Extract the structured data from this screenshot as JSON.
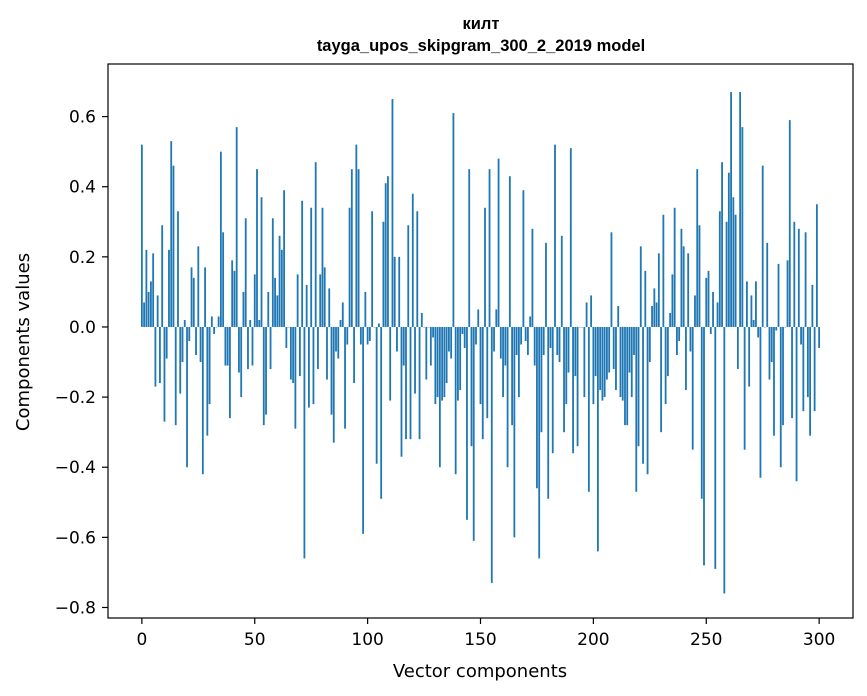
{
  "chart_data": {
    "type": "bar",
    "title_lines": [
      "килт",
      "tayga_upos_skipgram_300_2_2019 model"
    ],
    "xlabel": "Vector components",
    "ylabel": "Components values",
    "xlim": [
      -15,
      315
    ],
    "ylim": [
      -0.83,
      0.75
    ],
    "xticks": [
      0,
      50,
      100,
      150,
      200,
      250,
      300
    ],
    "xtick_labels": [
      "0",
      "50",
      "100",
      "150",
      "200",
      "250",
      "300"
    ],
    "yticks": [
      -0.8,
      -0.6,
      -0.4,
      -0.2,
      0.0,
      0.2,
      0.4,
      0.6
    ],
    "ytick_labels": [
      "−0.8",
      "−0.6",
      "−0.4",
      "−0.2",
      "0.0",
      "0.2",
      "0.4",
      "0.6"
    ],
    "grid": false,
    "color": "#1f77b4",
    "values": [
      0.52,
      0.07,
      0.22,
      0.1,
      0.13,
      0.21,
      -0.17,
      0.09,
      -0.16,
      0.29,
      -0.27,
      -0.09,
      0.22,
      0.53,
      0.46,
      -0.28,
      0.33,
      -0.19,
      -0.1,
      0.02,
      -0.4,
      -0.04,
      0.17,
      0.14,
      -0.08,
      0.23,
      -0.1,
      -0.42,
      0.17,
      -0.31,
      -0.22,
      0.03,
      -0.02,
      0.0,
      0.03,
      0.5,
      0.27,
      -0.11,
      -0.11,
      -0.26,
      0.19,
      0.16,
      0.57,
      -0.13,
      -0.2,
      0.1,
      0.31,
      -0.12,
      0.02,
      -0.11,
      0.15,
      0.45,
      0.02,
      0.37,
      -0.28,
      -0.25,
      0.1,
      -0.12,
      0.31,
      0.14,
      0.09,
      0.26,
      0.22,
      0.39,
      -0.06,
      0.0,
      -0.15,
      -0.16,
      -0.29,
      0.15,
      -0.14,
      0.36,
      -0.66,
      0.12,
      -0.23,
      0.34,
      -0.22,
      0.47,
      -0.12,
      0.15,
      0.34,
      0.17,
      -0.15,
      0.11,
      -0.25,
      -0.33,
      -0.07,
      -0.09,
      0.02,
      0.07,
      -0.29,
      -0.05,
      0.34,
      0.45,
      -0.16,
      0.52,
      0.45,
      -0.05,
      -0.59,
      0.1,
      -0.05,
      -0.04,
      0.33,
      0.0,
      -0.39,
      0.01,
      -0.49,
      0.3,
      0.41,
      0.43,
      -0.21,
      0.65,
      0.2,
      -0.07,
      0.2,
      -0.37,
      -0.11,
      -0.32,
      0.29,
      -0.32,
      0.38,
      -0.19,
      0.33,
      -0.32,
      0.04,
      0.0,
      -0.15,
      0.0,
      -0.11,
      -0.03,
      -0.22,
      -0.2,
      -0.4,
      -0.21,
      -0.2,
      -0.16,
      -0.07,
      -0.09,
      0.61,
      -0.42,
      -0.21,
      -0.18,
      -0.02,
      -0.06,
      -0.55,
      0.45,
      -0.34,
      -0.61,
      -0.05,
      0.05,
      -0.22,
      -0.32,
      0.34,
      -0.26,
      0.45,
      -0.73,
      -0.07,
      0.05,
      0.48,
      -0.09,
      -0.2,
      -0.11,
      -0.4,
      0.43,
      -0.28,
      -0.6,
      -0.08,
      -0.2,
      -0.05,
      0.39,
      -0.04,
      -0.08,
      0.03,
      0.28,
      -0.11,
      -0.46,
      -0.66,
      -0.3,
      -0.08,
      0.24,
      -0.49,
      -0.06,
      -0.36,
      0.52,
      -0.08,
      -0.1,
      0.26,
      -0.3,
      -0.22,
      -0.13,
      0.51,
      -0.36,
      -0.14,
      -0.34,
      0.0,
      0.0,
      -0.2,
      0.07,
      -0.47,
      0.09,
      -0.22,
      -0.14,
      -0.64,
      -0.18,
      -0.21,
      -0.2,
      -0.15,
      -0.13,
      0.27,
      -0.12,
      -0.18,
      0.06,
      -0.2,
      -0.21,
      -0.28,
      -0.28,
      -0.13,
      -0.2,
      -0.08,
      -0.47,
      -0.34,
      0.23,
      -0.39,
      0.16,
      -0.42,
      -0.1,
      0.06,
      0.11,
      0.07,
      0.21,
      -0.3,
      0.32,
      -0.22,
      -0.14,
      0.04,
      0.15,
      0.34,
      -0.08,
      -0.04,
      0.28,
      0.23,
      -0.18,
      0.21,
      -0.07,
      -0.35,
      0.09,
      0.45,
      0.29,
      -0.49,
      -0.68,
      0.14,
      0.16,
      -0.02,
      0.1,
      -0.69,
      0.07,
      0.33,
      0.47,
      -0.76,
      0.3,
      0.44,
      0.67,
      0.37,
      0.32,
      -0.12,
      0.67,
      0.57,
      -0.35,
      0.13,
      -0.17,
      0.09,
      0.02,
      0.13,
      -0.03,
      -0.43,
      0.46,
      0.0,
      0.24,
      -0.15,
      -0.1,
      -0.31,
      -0.01,
      0.18,
      -0.4,
      -0.28,
      0.0,
      0.19,
      0.59,
      -0.26,
      0.3,
      -0.44,
      0.28,
      -0.05,
      -0.24,
      0.27,
      -0.2,
      -0.31,
      0.12,
      -0.24,
      0.35,
      -0.06
    ]
  }
}
